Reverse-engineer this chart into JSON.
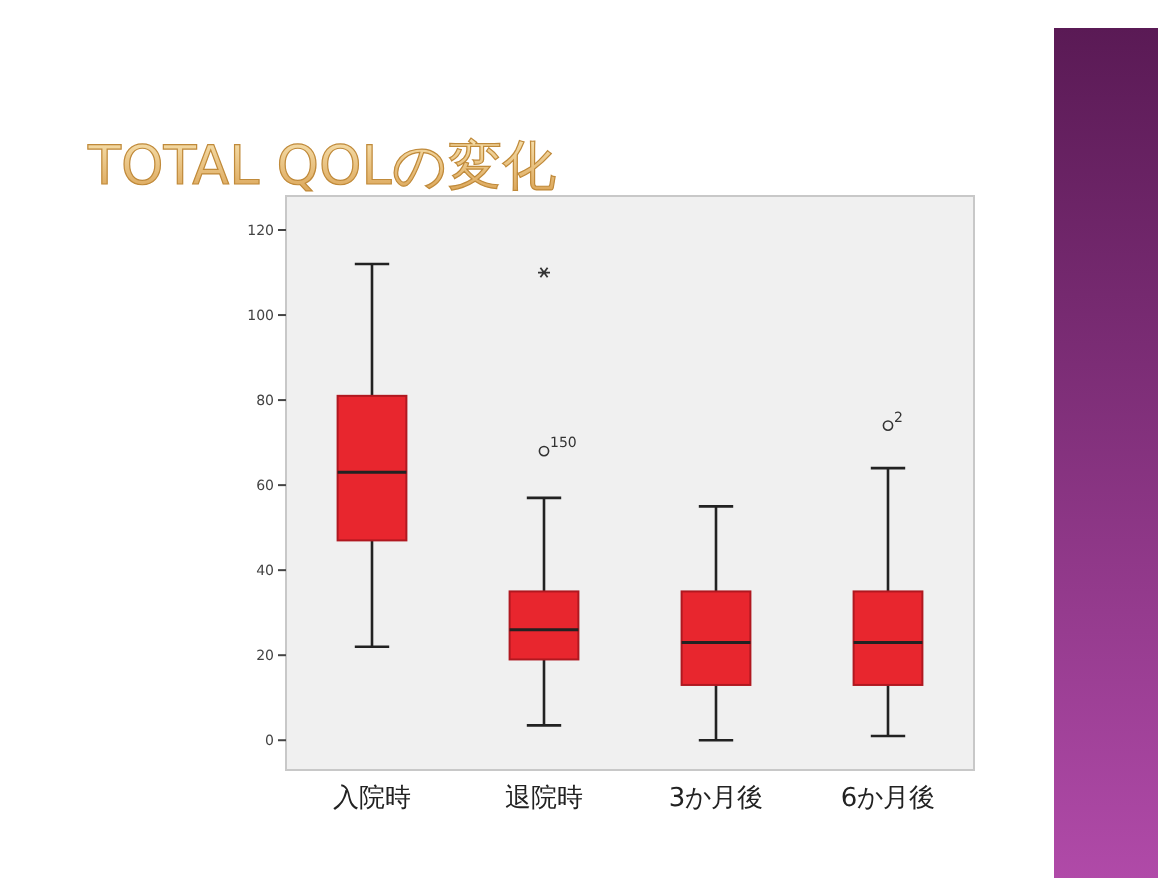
{
  "chart_data": {
    "type": "box",
    "title": "TOTAL QOLの変化",
    "categories": [
      "入院時",
      "退院時",
      "3か月後",
      "6か月後"
    ],
    "boxes": [
      {
        "low": 22,
        "q1": 47,
        "median": 63,
        "q3": 81,
        "high": 112
      },
      {
        "low": 3.5,
        "q1": 19,
        "median": 26,
        "q3": 35,
        "high": 57,
        "outliers": [
          68,
          110
        ]
      },
      {
        "low": 0,
        "q1": 13,
        "median": 23,
        "q3": 35,
        "high": 55
      },
      {
        "low": 1,
        "q1": 13,
        "median": 23,
        "q3": 35,
        "high": 64,
        "outliers": [
          74
        ]
      }
    ],
    "color": "#e8262e",
    "ylim": [
      -7,
      128
    ],
    "yticks": [
      0,
      20,
      40,
      60,
      80,
      100,
      120
    ],
    "annotations": [
      "150",
      "2"
    ]
  }
}
